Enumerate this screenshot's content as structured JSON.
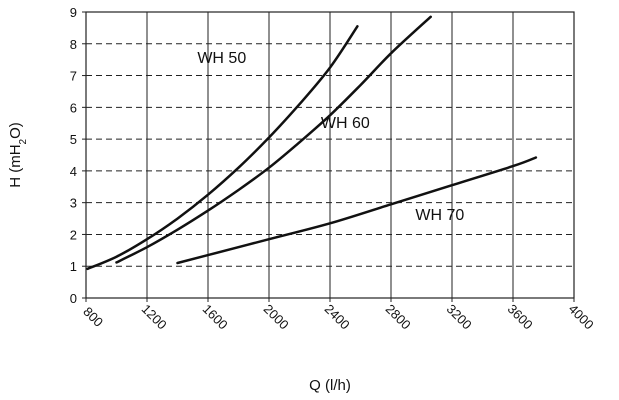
{
  "chart_data": {
    "type": "line",
    "xlabel": "Q (l/h)",
    "ylabel_main": "H (mH",
    "ylabel_sub": "2",
    "ylabel_end": "O)",
    "xlim": [
      800,
      4000
    ],
    "ylim": [
      0,
      9
    ],
    "xticks": [
      800,
      1200,
      1600,
      2000,
      2400,
      2800,
      3200,
      3600,
      4000
    ],
    "yticks": [
      0,
      1,
      2,
      3,
      4,
      5,
      6,
      7,
      8,
      9
    ],
    "grid": true,
    "series": [
      {
        "name": "WH 50",
        "label_at": [
          1530,
          7.4
        ],
        "points": [
          [
            810,
            0.92
          ],
          [
            1000,
            1.3
          ],
          [
            1200,
            1.85
          ],
          [
            1400,
            2.5
          ],
          [
            1600,
            3.25
          ],
          [
            1800,
            4.1
          ],
          [
            2000,
            5.05
          ],
          [
            2200,
            6.1
          ],
          [
            2400,
            7.25
          ],
          [
            2580,
            8.55
          ]
        ]
      },
      {
        "name": "WH 60",
        "label_at": [
          2340,
          5.35
        ],
        "points": [
          [
            1000,
            1.12
          ],
          [
            1200,
            1.6
          ],
          [
            1400,
            2.15
          ],
          [
            1600,
            2.75
          ],
          [
            1800,
            3.4
          ],
          [
            2000,
            4.1
          ],
          [
            2200,
            4.9
          ],
          [
            2400,
            5.75
          ],
          [
            2600,
            6.7
          ],
          [
            2800,
            7.7
          ],
          [
            3060,
            8.85
          ]
        ]
      },
      {
        "name": "WH 70",
        "label_at": [
          2960,
          2.45
        ],
        "points": [
          [
            1400,
            1.1
          ],
          [
            1600,
            1.35
          ],
          [
            2000,
            1.85
          ],
          [
            2400,
            2.35
          ],
          [
            2800,
            2.95
          ],
          [
            3200,
            3.55
          ],
          [
            3600,
            4.15
          ],
          [
            3750,
            4.42
          ]
        ]
      }
    ]
  }
}
